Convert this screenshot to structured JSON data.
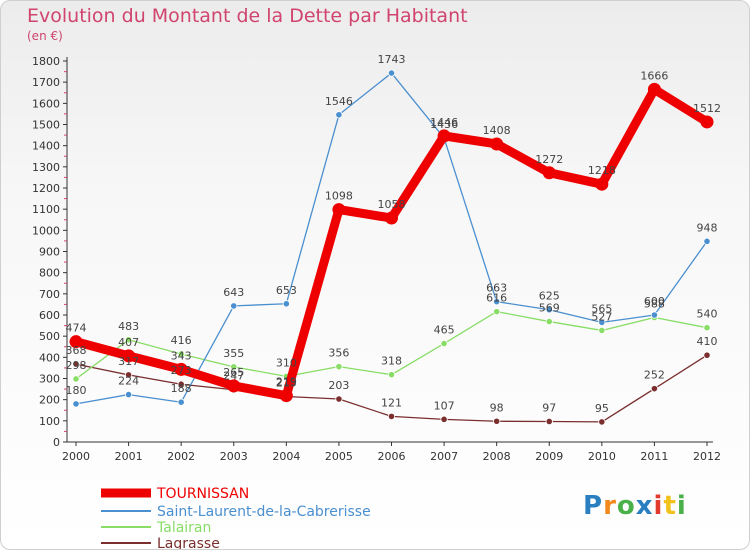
{
  "title": "Evolution du Montant de la Dette par Habitant",
  "subtitle": "(en €)",
  "logo": {
    "text": "Proxiti",
    "colors": [
      "#2a7fc1",
      "#f18a1e",
      "#4ab04a",
      "#2a7fc1",
      "#e33a2e",
      "#f1c21e",
      "#4ab04a"
    ]
  },
  "chart_data": {
    "type": "line",
    "x": [
      "2000",
      "2001",
      "2002",
      "2003",
      "2004",
      "2005",
      "2006",
      "2007",
      "2008",
      "2009",
      "2010",
      "2011",
      "2012"
    ],
    "yticks": [
      0,
      100,
      200,
      300,
      400,
      500,
      600,
      700,
      800,
      900,
      1000,
      1100,
      1200,
      1300,
      1400,
      1500,
      1600,
      1700,
      1800
    ],
    "ylim": [
      0,
      1800
    ],
    "grid": false,
    "legend": "bottom-left",
    "series": [
      {
        "name": "TOURNISSAN",
        "color": "#ee0000",
        "values": [
          474,
          407,
          343,
          265,
          219,
          1098,
          1058,
          1446,
          1408,
          1272,
          1218,
          1666,
          1512
        ]
      },
      {
        "name": "Saint-Laurent-de-la-Cabrerisse",
        "color": "#4a8fcf",
        "values": [
          180,
          224,
          188,
          643,
          653,
          1546,
          1743,
          1436,
          663,
          625,
          565,
          600,
          948
        ]
      },
      {
        "name": "Talairan",
        "color": "#88dd66",
        "values": [
          298,
          483,
          416,
          355,
          310,
          356,
          318,
          465,
          616,
          569,
          527,
          588,
          540
        ]
      },
      {
        "name": "Lagrasse",
        "color": "#7a2e2e",
        "values": [
          368,
          317,
          273,
          247,
          215,
          203,
          121,
          107,
          98,
          97,
          95,
          252,
          410
        ]
      }
    ]
  }
}
